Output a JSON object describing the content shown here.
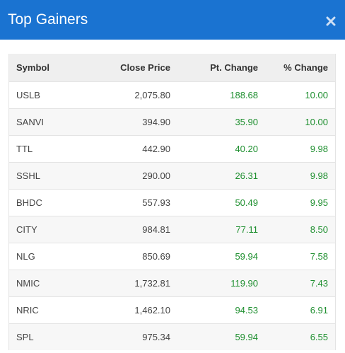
{
  "modal": {
    "title": "Top Gainers",
    "close_icon": "close-icon"
  },
  "colors": {
    "header_bg": "#1a73d1",
    "gain_text": "#1e8f2f"
  },
  "table": {
    "headers": {
      "symbol": "Symbol",
      "close_price": "Close Price",
      "pt_change": "Pt. Change",
      "pct_change": "% Change"
    },
    "rows": [
      {
        "symbol": "USLB",
        "close_price": "2,075.80",
        "pt_change": "188.68",
        "pct_change": "10.00"
      },
      {
        "symbol": "SANVI",
        "close_price": "394.90",
        "pt_change": "35.90",
        "pct_change": "10.00"
      },
      {
        "symbol": "TTL",
        "close_price": "442.90",
        "pt_change": "40.20",
        "pct_change": "9.98"
      },
      {
        "symbol": "SSHL",
        "close_price": "290.00",
        "pt_change": "26.31",
        "pct_change": "9.98"
      },
      {
        "symbol": "BHDC",
        "close_price": "557.93",
        "pt_change": "50.49",
        "pct_change": "9.95"
      },
      {
        "symbol": "CITY",
        "close_price": "984.81",
        "pt_change": "77.11",
        "pct_change": "8.50"
      },
      {
        "symbol": "NLG",
        "close_price": "850.69",
        "pt_change": "59.94",
        "pct_change": "7.58"
      },
      {
        "symbol": "NMIC",
        "close_price": "1,732.81",
        "pt_change": "119.90",
        "pct_change": "7.43"
      },
      {
        "symbol": "NRIC",
        "close_price": "1,462.10",
        "pt_change": "94.53",
        "pct_change": "6.91"
      },
      {
        "symbol": "SPL",
        "close_price": "975.34",
        "pt_change": "59.94",
        "pct_change": "6.55"
      }
    ]
  }
}
